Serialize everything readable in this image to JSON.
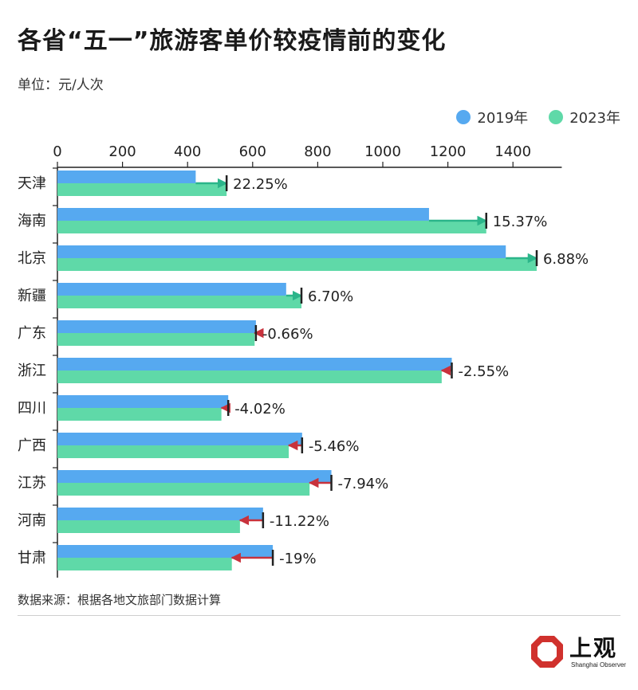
{
  "header": {
    "title": "各省“五一”旅游客单价较疫情前的变化",
    "unit": "单位：元/人次"
  },
  "footer": {
    "source": "数据来源：根据各地文旅部门数据计算"
  },
  "logo": {
    "name": "上观",
    "subtitle": "Shanghai Observer",
    "icon": "octagon-logo-icon",
    "color": "#d0312d"
  },
  "colors": {
    "s2019": "#56a9f0",
    "s2023": "#5fd9a8",
    "up_arrow": "#2bb58a",
    "down_arrow": "#c8323c",
    "axis": "#222222"
  },
  "chart_data": {
    "type": "bar",
    "orientation": "horizontal",
    "title": "各省“五一”旅游客单价较疫情前的变化",
    "xlabel": "",
    "ylabel": "",
    "unit": "元/人次",
    "xlim": [
      0,
      1550
    ],
    "x_ticks": [
      0,
      200,
      400,
      600,
      800,
      1000,
      1200,
      1400
    ],
    "x_tick_labels": [
      "0",
      "200",
      "400",
      "600",
      "800",
      "1000",
      "1200",
      "1400"
    ],
    "grid": false,
    "legend_position": "top-right",
    "categories": [
      "天津",
      "海南",
      "北京",
      "新疆",
      "广东",
      "浙江",
      "四川",
      "广西",
      "江苏",
      "河南",
      "甘肃"
    ],
    "series": [
      {
        "name": "2019年",
        "values": [
          425,
          1142,
          1378,
          703,
          610,
          1212,
          525,
          752,
          842,
          632,
          662
        ]
      },
      {
        "name": "2023年",
        "values": [
          520,
          1318,
          1473,
          750,
          606,
          1181,
          504,
          711,
          775,
          561,
          536
        ]
      }
    ],
    "change_labels": [
      "22.25%",
      "15.37%",
      "6.88%",
      "6.70%",
      "-0.66%",
      "-2.55%",
      "-4.02%",
      "-5.46%",
      "-7.94%",
      "-11.22%",
      "-19%"
    ]
  }
}
